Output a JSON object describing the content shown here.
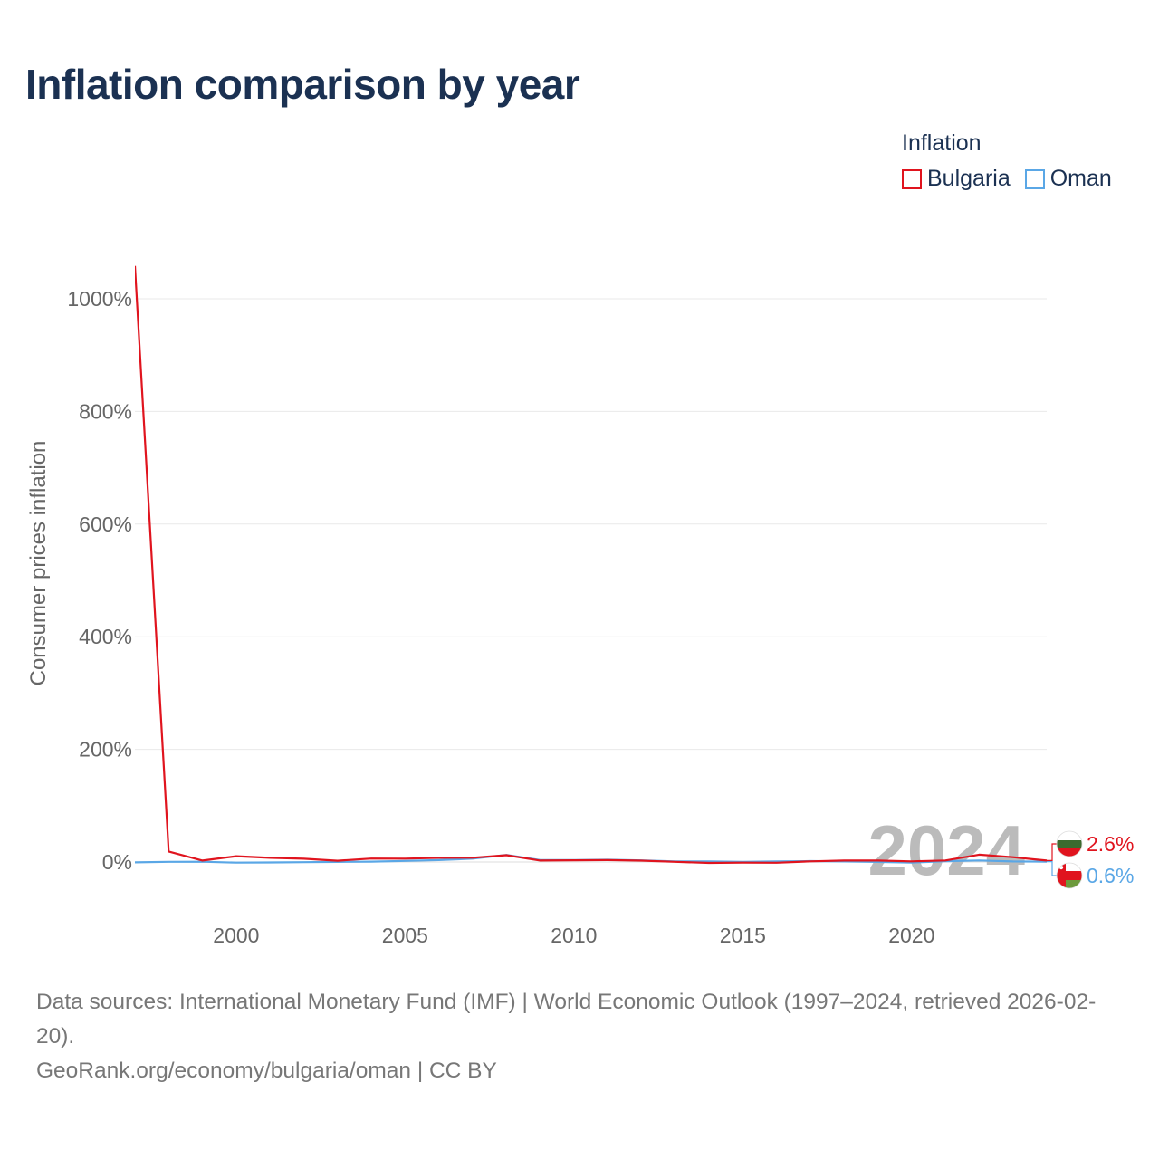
{
  "title": "Inflation comparison by year",
  "legend": {
    "title": "Inflation",
    "items": [
      {
        "label": "Bulgaria",
        "color": "#e0141e"
      },
      {
        "label": "Oman",
        "color": "#5aa7e6"
      }
    ]
  },
  "chart_data": {
    "type": "line",
    "title": "Inflation comparison by year",
    "xlabel": "",
    "ylabel": "Consumer prices inflation",
    "xlim": [
      1997,
      2024
    ],
    "ylim": [
      -80,
      1100
    ],
    "y_ticks": [
      0,
      200,
      400,
      600,
      800,
      1000
    ],
    "y_tick_labels": [
      "0%",
      "200%",
      "400%",
      "600%",
      "800%",
      "1000%"
    ],
    "x_ticks": [
      2000,
      2005,
      2010,
      2015,
      2020
    ],
    "x_tick_labels": [
      "2000",
      "2005",
      "2010",
      "2015",
      "2020"
    ],
    "grid": true,
    "watermark_year": "2024",
    "x": [
      1997,
      1998,
      1999,
      2000,
      2001,
      2002,
      2003,
      2004,
      2005,
      2006,
      2007,
      2008,
      2009,
      2010,
      2011,
      2012,
      2013,
      2014,
      2015,
      2016,
      2017,
      2018,
      2019,
      2020,
      2021,
      2022,
      2023,
      2024
    ],
    "series": [
      {
        "name": "Bulgaria",
        "color": "#e0141e",
        "end_label": "2.6%",
        "flag": "bulgaria-flag",
        "values": [
          1058.4,
          18.7,
          2.6,
          10.3,
          7.4,
          5.8,
          2.3,
          6.1,
          6.0,
          7.4,
          7.6,
          12.0,
          2.5,
          3.0,
          3.4,
          2.4,
          0.4,
          -1.6,
          -1.1,
          -1.3,
          1.2,
          2.6,
          2.5,
          1.2,
          2.8,
          13.0,
          8.6,
          2.6
        ]
      },
      {
        "name": "Oman",
        "color": "#5aa7e6",
        "end_label": "0.6%",
        "flag": "oman-flag",
        "values": [
          -0.7,
          0.4,
          0.5,
          -1.2,
          -0.8,
          -0.3,
          0.2,
          0.7,
          1.9,
          3.4,
          5.9,
          12.6,
          3.5,
          3.3,
          4.0,
          2.9,
          1.2,
          1.0,
          0.1,
          1.1,
          1.6,
          0.9,
          0.1,
          -0.9,
          1.5,
          2.8,
          0.9,
          0.6
        ]
      }
    ]
  },
  "footer": {
    "sources": "Data sources: International Monetary Fund (IMF) | World Economic Outlook (1997–2024, retrieved 2026-02-20).",
    "credit": "GeoRank.org/economy/bulgaria/oman | CC BY"
  }
}
